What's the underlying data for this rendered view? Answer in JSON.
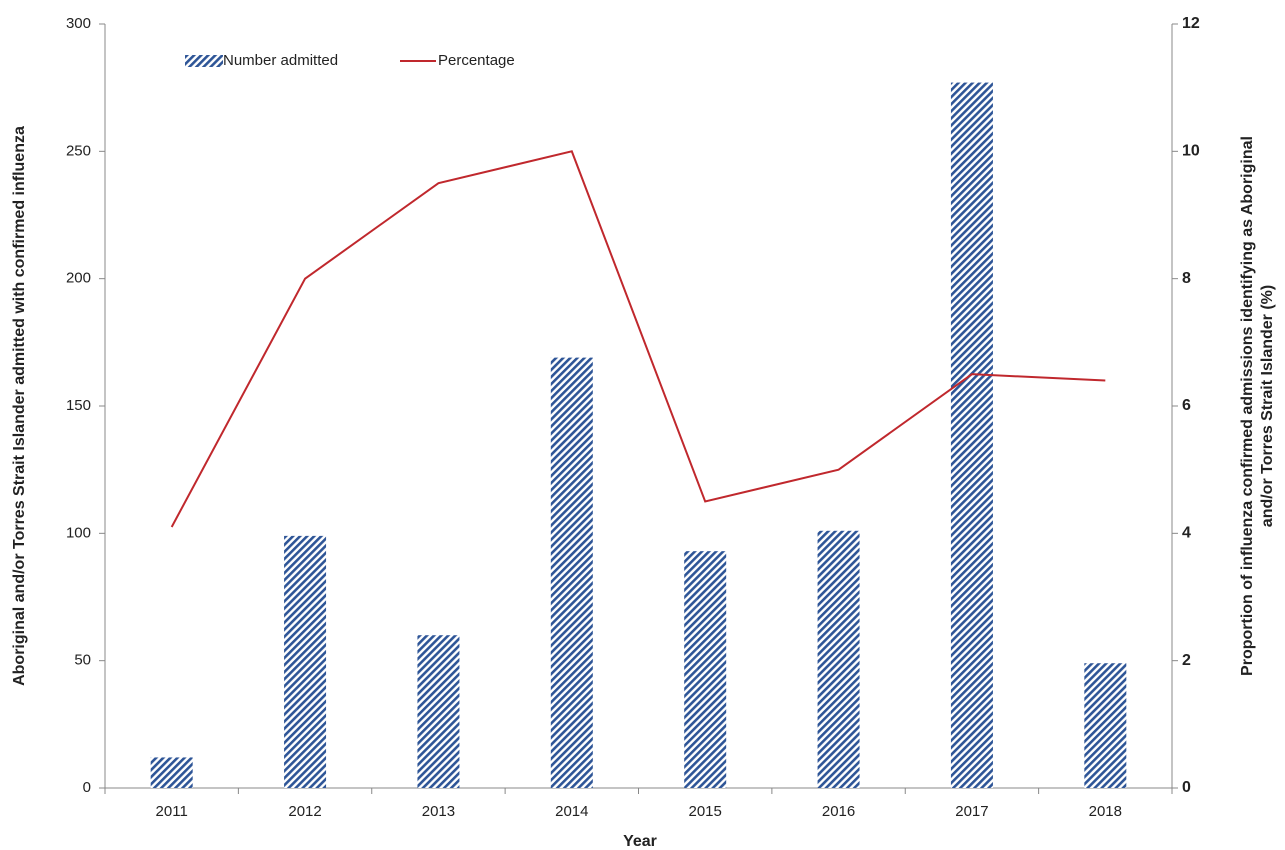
{
  "chart_data": {
    "type": "combo",
    "xlabel": "Year",
    "ylabel": "Aboriginal and/or Torres Strait Islander admitted with confirmed influenza",
    "y2label": [
      "Proportion of influenza confirmed admissions identifying as Aboriginal",
      "and/or Torres Strait Islander (%)"
    ],
    "categories": [
      "2011",
      "2012",
      "2013",
      "2014",
      "2015",
      "2016",
      "2017",
      "2018"
    ],
    "series": [
      {
        "name": "Number admitted",
        "type": "bar",
        "color": "#2e5597",
        "hatch": true,
        "values": [
          12,
          99,
          60,
          169,
          93,
          101,
          277,
          49
        ]
      },
      {
        "name": "Percentage",
        "type": "line",
        "axis": "y2",
        "color": "#c0282d",
        "values": [
          4.1,
          8.0,
          9.5,
          10.0,
          4.5,
          5.0,
          6.5,
          6.4
        ]
      }
    ],
    "ylim": [
      0,
      300
    ],
    "yticks": [
      0,
      50,
      100,
      150,
      200,
      250,
      300
    ],
    "y2lim": [
      0,
      12
    ],
    "y2ticks": [
      0,
      2,
      4,
      6,
      8,
      10,
      12
    ],
    "grid": false
  }
}
